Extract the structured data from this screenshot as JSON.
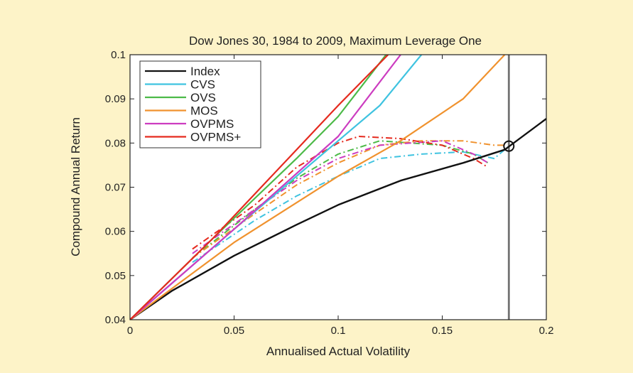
{
  "chart_data": {
    "type": "line",
    "title": "Dow Jones 30, 1984 to 2009, Maximum Leverage One",
    "xlabel": "Annualised Actual Volatility",
    "ylabel": "Compound Annual Return",
    "xlim": [
      0,
      0.2
    ],
    "ylim": [
      0.04,
      0.1
    ],
    "xticks": [
      0,
      0.05,
      0.1,
      0.15,
      0.2
    ],
    "xtick_labels": [
      "0",
      "0.05",
      "0.1",
      "0.15",
      "0.2"
    ],
    "yticks": [
      0.04,
      0.05,
      0.06,
      0.07,
      0.08,
      0.09,
      0.1
    ],
    "ytick_labels": [
      "0.04",
      "0.05",
      "0.06",
      "0.07",
      "0.08",
      "0.09",
      "0.1"
    ],
    "legend_position": "top-left",
    "vertical_line_x": 0.182,
    "marker": {
      "x": 0.182,
      "y": 0.0793,
      "shape": "circle"
    },
    "series": [
      {
        "name": "Index",
        "color": "#111111",
        "style": "solid",
        "x": [
          0,
          0.02,
          0.05,
          0.08,
          0.1,
          0.13,
          0.16,
          0.18,
          0.2
        ],
        "y": [
          0.04,
          0.0465,
          0.0545,
          0.0615,
          0.066,
          0.0715,
          0.0755,
          0.0785,
          0.0855
        ]
      },
      {
        "name": "CVS",
        "color": "#3fc3e0",
        "style": "solid",
        "x": [
          0,
          0.05,
          0.08,
          0.1,
          0.12,
          0.14
        ],
        "y": [
          0.04,
          0.0605,
          0.0725,
          0.0805,
          0.0885,
          0.1
        ]
      },
      {
        "name": "OVS",
        "color": "#4cba48",
        "style": "solid",
        "x": [
          0,
          0.04,
          0.08,
          0.1,
          0.123
        ],
        "y": [
          0.04,
          0.0585,
          0.0765,
          0.086,
          0.1
        ]
      },
      {
        "name": "MOS",
        "color": "#f0922e",
        "style": "solid",
        "x": [
          0,
          0.05,
          0.1,
          0.13,
          0.16,
          0.18
        ],
        "y": [
          0.04,
          0.0575,
          0.0725,
          0.0805,
          0.09,
          0.1
        ]
      },
      {
        "name": "OVPMS",
        "color": "#cc3cc0",
        "style": "solid",
        "x": [
          0,
          0.05,
          0.1,
          0.13
        ],
        "y": [
          0.04,
          0.0605,
          0.0815,
          0.1
        ]
      },
      {
        "name": "OVPMS+",
        "color": "#e52a1e",
        "style": "solid",
        "x": [
          0,
          0.04,
          0.08,
          0.1,
          0.124
        ],
        "y": [
          0.04,
          0.0585,
          0.0785,
          0.0885,
          0.1
        ]
      }
    ],
    "dashed_series": [
      {
        "name": "CVS",
        "color": "#3fc3e0",
        "x": [
          0.03,
          0.06,
          0.08,
          0.1,
          0.12,
          0.14,
          0.16,
          0.175,
          0.182
        ],
        "y": [
          0.053,
          0.0625,
          0.068,
          0.0725,
          0.0765,
          0.0775,
          0.078,
          0.0765,
          0.0793
        ]
      },
      {
        "name": "OVS",
        "color": "#4cba48",
        "x": [
          0.03,
          0.06,
          0.08,
          0.1,
          0.12,
          0.15,
          0.165,
          0.172
        ],
        "y": [
          0.054,
          0.065,
          0.072,
          0.0775,
          0.0805,
          0.0795,
          0.0775,
          0.0755
        ]
      },
      {
        "name": "MOS",
        "color": "#f0922e",
        "x": [
          0.03,
          0.06,
          0.08,
          0.1,
          0.12,
          0.14,
          0.16,
          0.175,
          0.18
        ],
        "y": [
          0.054,
          0.064,
          0.0705,
          0.0755,
          0.0795,
          0.0805,
          0.0805,
          0.0795,
          0.0795
        ]
      },
      {
        "name": "OVPMS",
        "color": "#cc3cc0",
        "x": [
          0.03,
          0.06,
          0.08,
          0.1,
          0.12,
          0.15,
          0.165,
          0.172
        ],
        "y": [
          0.055,
          0.065,
          0.0715,
          0.0765,
          0.0795,
          0.0805,
          0.0775,
          0.0755
        ]
      },
      {
        "name": "OVPMS+",
        "color": "#e52a1e",
        "x": [
          0.03,
          0.06,
          0.08,
          0.1,
          0.11,
          0.13,
          0.15,
          0.165,
          0.172
        ],
        "y": [
          0.056,
          0.066,
          0.0745,
          0.08,
          0.0815,
          0.081,
          0.0795,
          0.0765,
          0.0745
        ]
      }
    ]
  }
}
